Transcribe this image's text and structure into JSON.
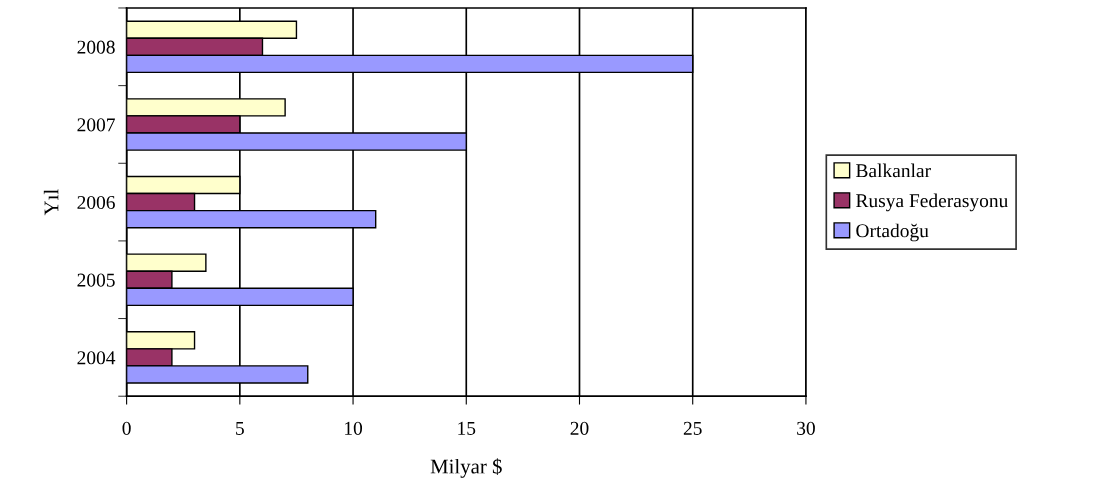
{
  "chart_data": {
    "type": "bar",
    "orientation": "horizontal",
    "xlabel": "Milyar $",
    "ylabel": "Yıl",
    "categories": [
      "2008",
      "2007",
      "2006",
      "2005",
      "2004"
    ],
    "series": [
      {
        "name": "Balkanlar",
        "color": "#ffffcc",
        "values": [
          7.5,
          7,
          5,
          3.5,
          3
        ]
      },
      {
        "name": "Rusya Federasyonu",
        "color": "#993366",
        "values": [
          6,
          5,
          3,
          2,
          2
        ]
      },
      {
        "name": "Ortadoğu",
        "color": "#9999ff",
        "values": [
          25,
          15,
          11,
          10,
          8
        ]
      }
    ],
    "xlim": [
      0,
      30
    ],
    "xticks": [
      0,
      5,
      10,
      15,
      20,
      25,
      30
    ],
    "grid": "x",
    "legend": "right"
  }
}
